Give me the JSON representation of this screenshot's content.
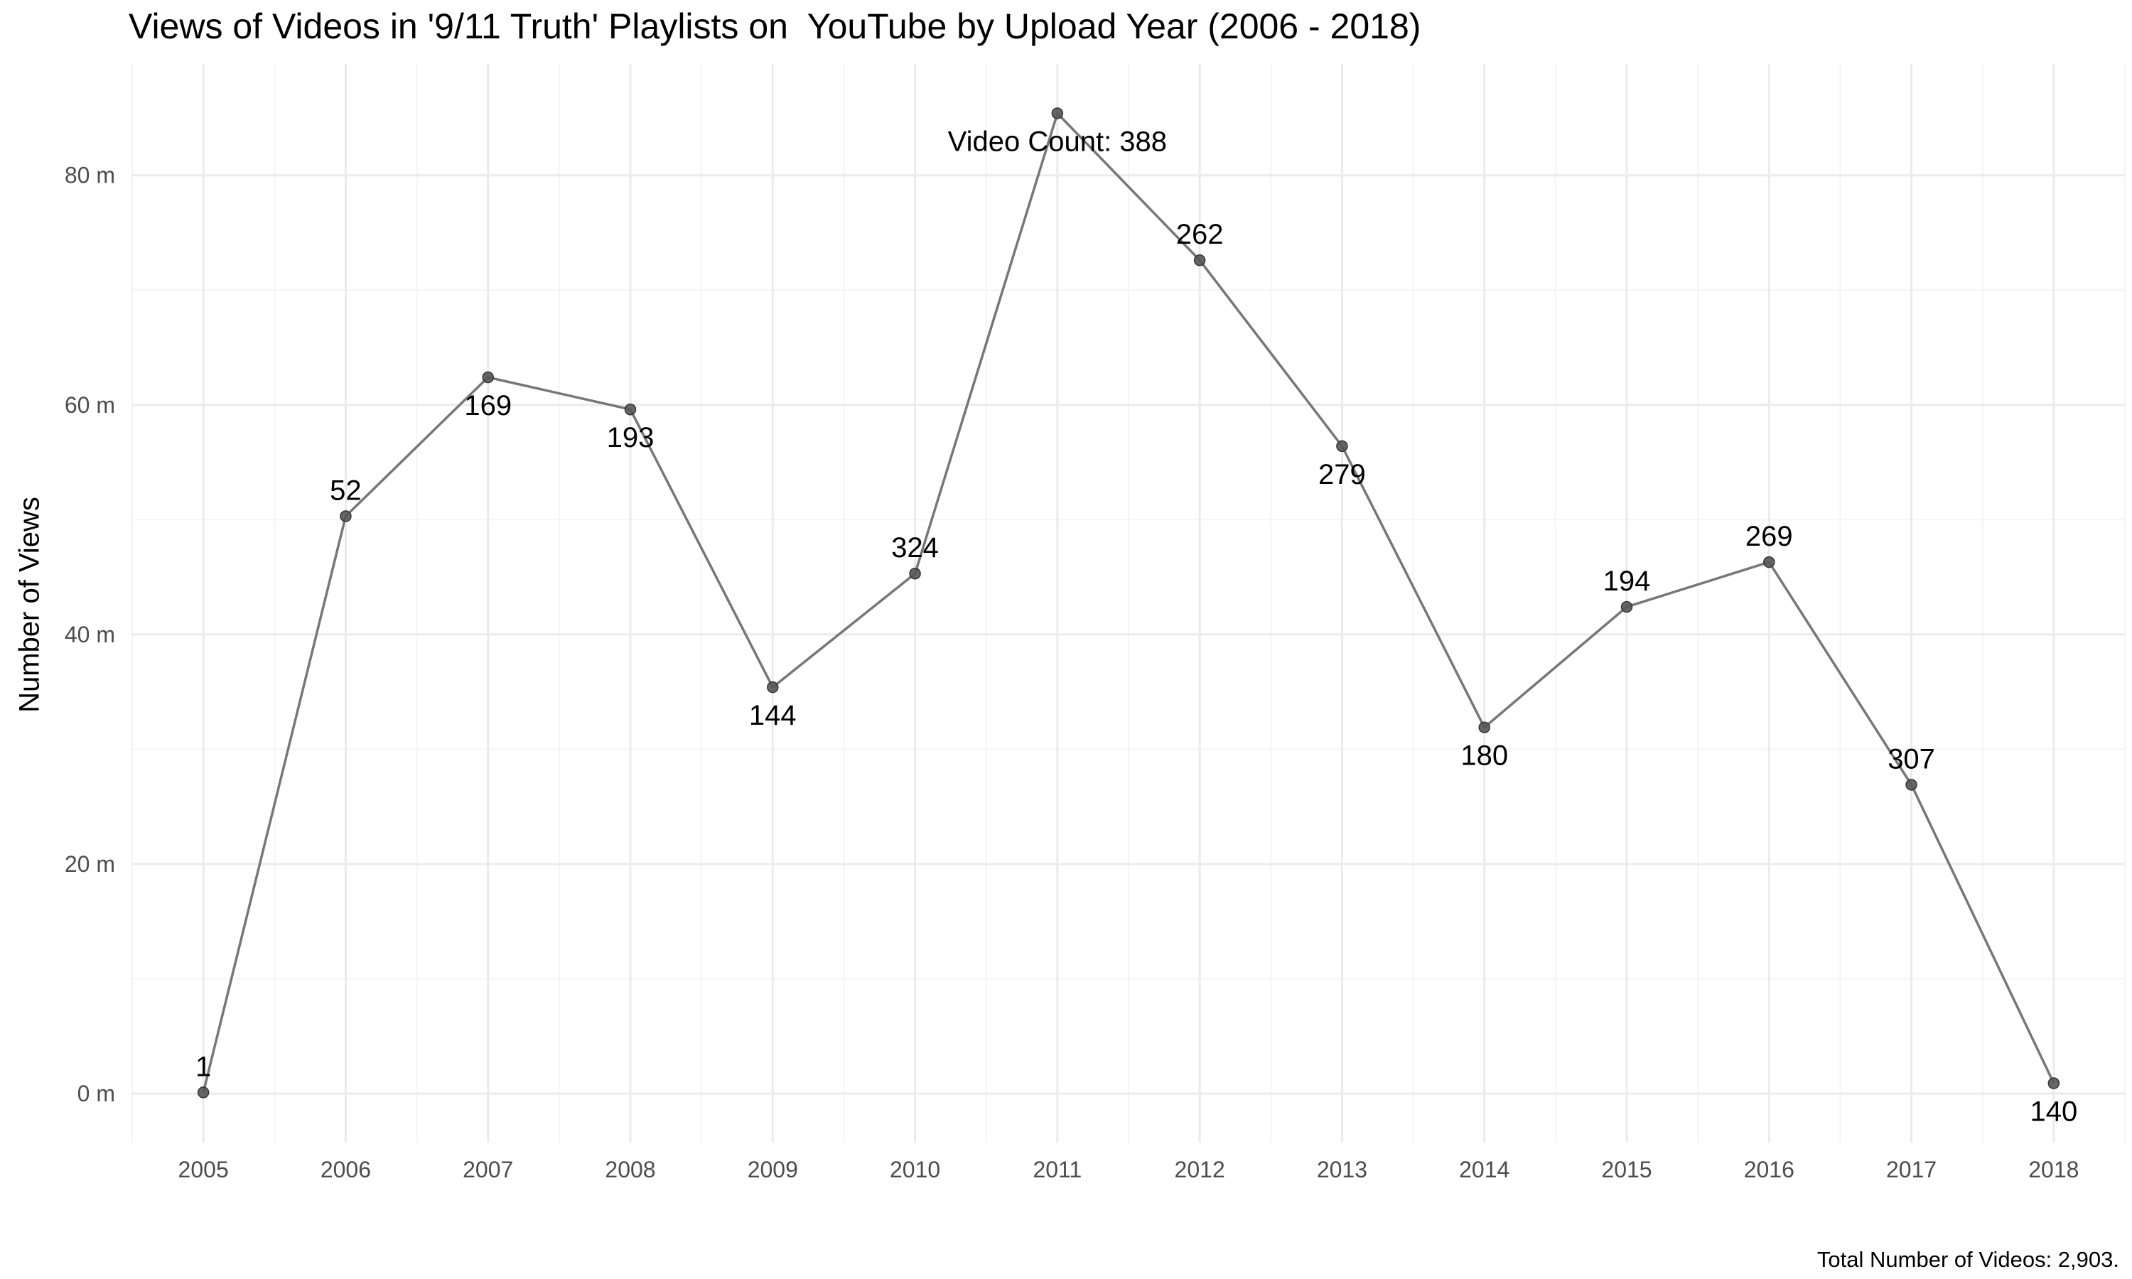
{
  "chart_data": {
    "type": "line",
    "title": "Views of Videos in '9/11 Truth' Playlists on  YouTube by Upload Year (2006 - 2018)",
    "xlabel": "",
    "ylabel": "Number of Views",
    "caption": "Total Number of Videos: 2,903.",
    "x": [
      2005,
      2006,
      2007,
      2008,
      2009,
      2010,
      2011,
      2012,
      2013,
      2014,
      2015,
      2016,
      2017,
      2018
    ],
    "values": [
      0.1,
      50.3,
      62.4,
      59.6,
      35.4,
      45.3,
      85.4,
      72.6,
      56.4,
      31.9,
      42.4,
      46.3,
      26.9,
      0.9
    ],
    "labels": [
      "1",
      "52",
      "169",
      "193",
      "144",
      "324",
      "Video Count: 388",
      "262",
      "279",
      "180",
      "194",
      "269",
      "307",
      "140"
    ],
    "label_positions": [
      "above",
      "above",
      "below",
      "below",
      "below",
      "above",
      "below",
      "above",
      "below",
      "below",
      "above",
      "above",
      "above",
      "below"
    ],
    "y_unit_suffix": " m",
    "yticks": [
      0,
      20,
      40,
      60,
      80
    ],
    "xlim": [
      2004.5,
      2018.5
    ],
    "ylim": [
      -4.27,
      89.7
    ],
    "grid": true,
    "colors": {
      "line": "#777777",
      "point": "#555555",
      "grid_major": "#ebebeb",
      "grid_minor": "#f4f4f4"
    }
  }
}
